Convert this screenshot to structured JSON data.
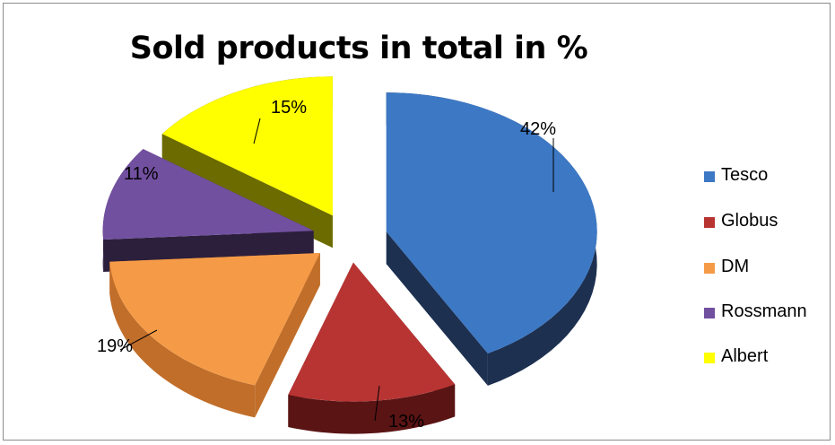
{
  "chart_data": {
    "type": "pie",
    "title": "Sold products in total in %",
    "categories": [
      "Tesco",
      "Globus",
      "DM",
      "Rossmann",
      "Albert"
    ],
    "values": [
      42,
      13,
      19,
      11,
      15
    ],
    "value_labels": [
      "42%",
      "13%",
      "19%",
      "11%",
      "15%"
    ],
    "colors": [
      "#3d78c4",
      "#b83433",
      "#f59b47",
      "#7250a0",
      "#ffff00"
    ],
    "side_colors": [
      "#1d3050",
      "#5a1414",
      "#c06e2a",
      "#2c1f3c",
      "#6b6b00"
    ],
    "exploded": true,
    "three_d": true,
    "legend_position": "right"
  }
}
